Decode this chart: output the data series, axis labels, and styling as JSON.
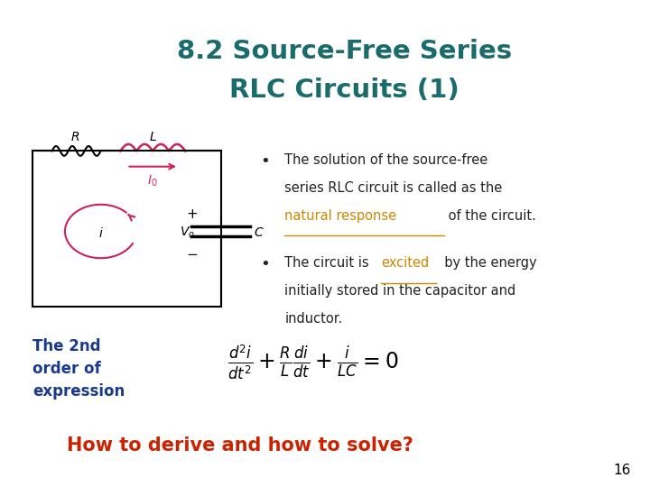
{
  "title_line1": "8.2 Source-Free Series",
  "title_line2": "RLC Circuits (1)",
  "title_color": "#1a6b6b",
  "background_color": "#ffffff",
  "bullet1_line1": "The solution of the source-free",
  "bullet1_line2": "series RLC circuit is called as the",
  "bullet1_link": "natural response",
  "bullet1_end": " of the circuit.",
  "bullet2_pre": "The circuit is ",
  "bullet2_link": "excited",
  "bullet2_post": "  by the energy",
  "bullet2_line2": "initially stored in the capacitor and",
  "bullet2_line3": "inductor.",
  "label_text": "The 2nd\norder of\nexpression",
  "label_color": "#1a3a8c",
  "bottom_text": "How to derive and how to solve?",
  "bottom_color": "#cc2200",
  "page_num": "16",
  "link_color": "#cc8800",
  "bullet_color": "#222222",
  "resistor_color": "#000000",
  "inductor_color": "#cc2255",
  "arrow_color": "#cc2255"
}
